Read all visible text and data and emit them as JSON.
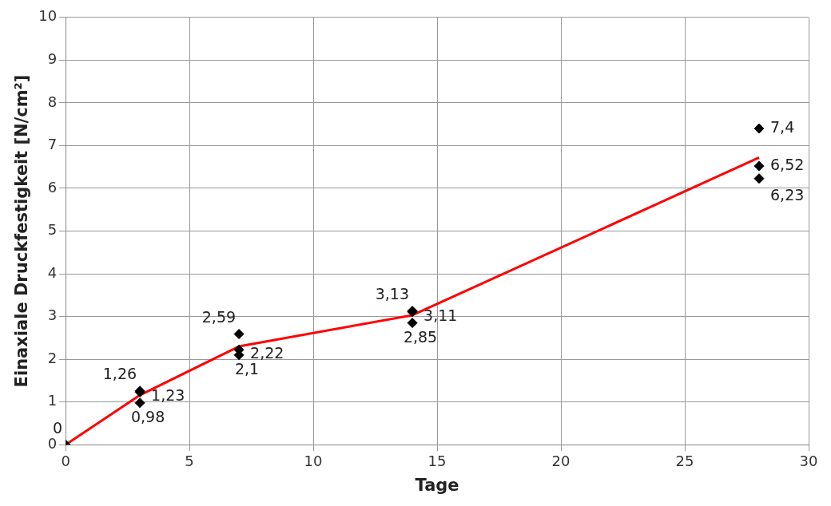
{
  "chart_data": {
    "type": "scatter",
    "xlabel": "Tage",
    "ylabel": "Einaxiale Druckfestigkeit [N/cm²]",
    "xlim": [
      0,
      30
    ],
    "xticks": [
      0,
      5,
      10,
      15,
      20,
      25,
      30
    ],
    "ylim": [
      0,
      10
    ],
    "yticks": [
      0,
      1,
      2,
      3,
      4,
      5,
      6,
      7,
      8,
      9,
      10
    ],
    "grid": true,
    "legend": false,
    "series": [
      {
        "type": "line",
        "color": "#ff0000",
        "marker": "none",
        "line_style": "solid",
        "x": [
          0,
          3,
          7,
          14,
          28
        ],
        "values": [
          0,
          1.16,
          2.3,
          3.03,
          6.72
        ]
      },
      {
        "color": "#000000",
        "marker": "diamond",
        "x": [
          0,
          3,
          3,
          3,
          7,
          7,
          7,
          14,
          14,
          14,
          28,
          28,
          28
        ],
        "values": [
          0,
          1.26,
          1.23,
          0.98,
          2.59,
          2.22,
          2.1,
          3.13,
          3.11,
          2.85,
          7.4,
          6.52,
          6.23
        ],
        "value_labels": [
          "0",
          "1,26",
          "1,23",
          "0,98",
          "2,59",
          "2,22",
          "2,1",
          "3,13",
          "3,11",
          "2,85",
          "7,4",
          "6,52",
          "6,23"
        ]
      }
    ]
  }
}
